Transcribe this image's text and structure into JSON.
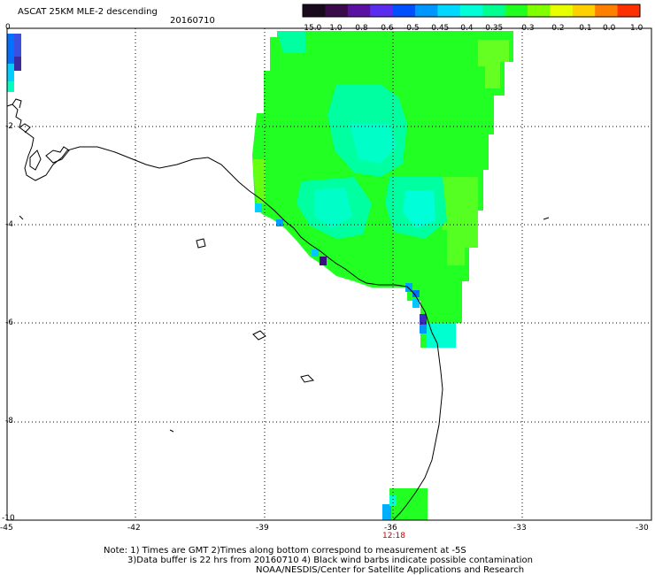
{
  "header": {
    "product_title": "ASCAT 25KM MLE-2 descending",
    "date": "20160710"
  },
  "colorbar": {
    "labels": [
      "-15.0",
      "-1.0",
      "-0.8",
      "-0.6",
      "-0.5",
      "-0.45",
      "-0.4",
      "-0.35",
      "-0.3",
      "-0.2",
      "-0.1",
      "0.0",
      "1.0"
    ],
    "colors": [
      "#1a0a1e",
      "#3a0a4a",
      "#5a10a0",
      "#5a2cf0",
      "#0050ff",
      "#0096ff",
      "#00d8ff",
      "#00ffd8",
      "#00ff90",
      "#20ff20",
      "#80ff00",
      "#e8ff00",
      "#ffd000",
      "#ff8000",
      "#ff3000"
    ]
  },
  "axes": {
    "x_ticks": [
      "-45",
      "-42",
      "-39",
      "-36",
      "-33",
      "-30"
    ],
    "y_ticks": [
      "0",
      "-2",
      "-4",
      "-6",
      "-8",
      "-10"
    ]
  },
  "time_label": "12:18",
  "time_color": "#cc0000",
  "notes": {
    "line1": "Note: 1) Times are GMT 2)Times along bottom correspond to measurement at -5S",
    "line2": "3)Data buffer is 22 hrs from 20160710 4) Black wind barbs indicate possible contamination",
    "line3": "NOAA/NESDIS/Center for Satellite Applications and Research"
  }
}
